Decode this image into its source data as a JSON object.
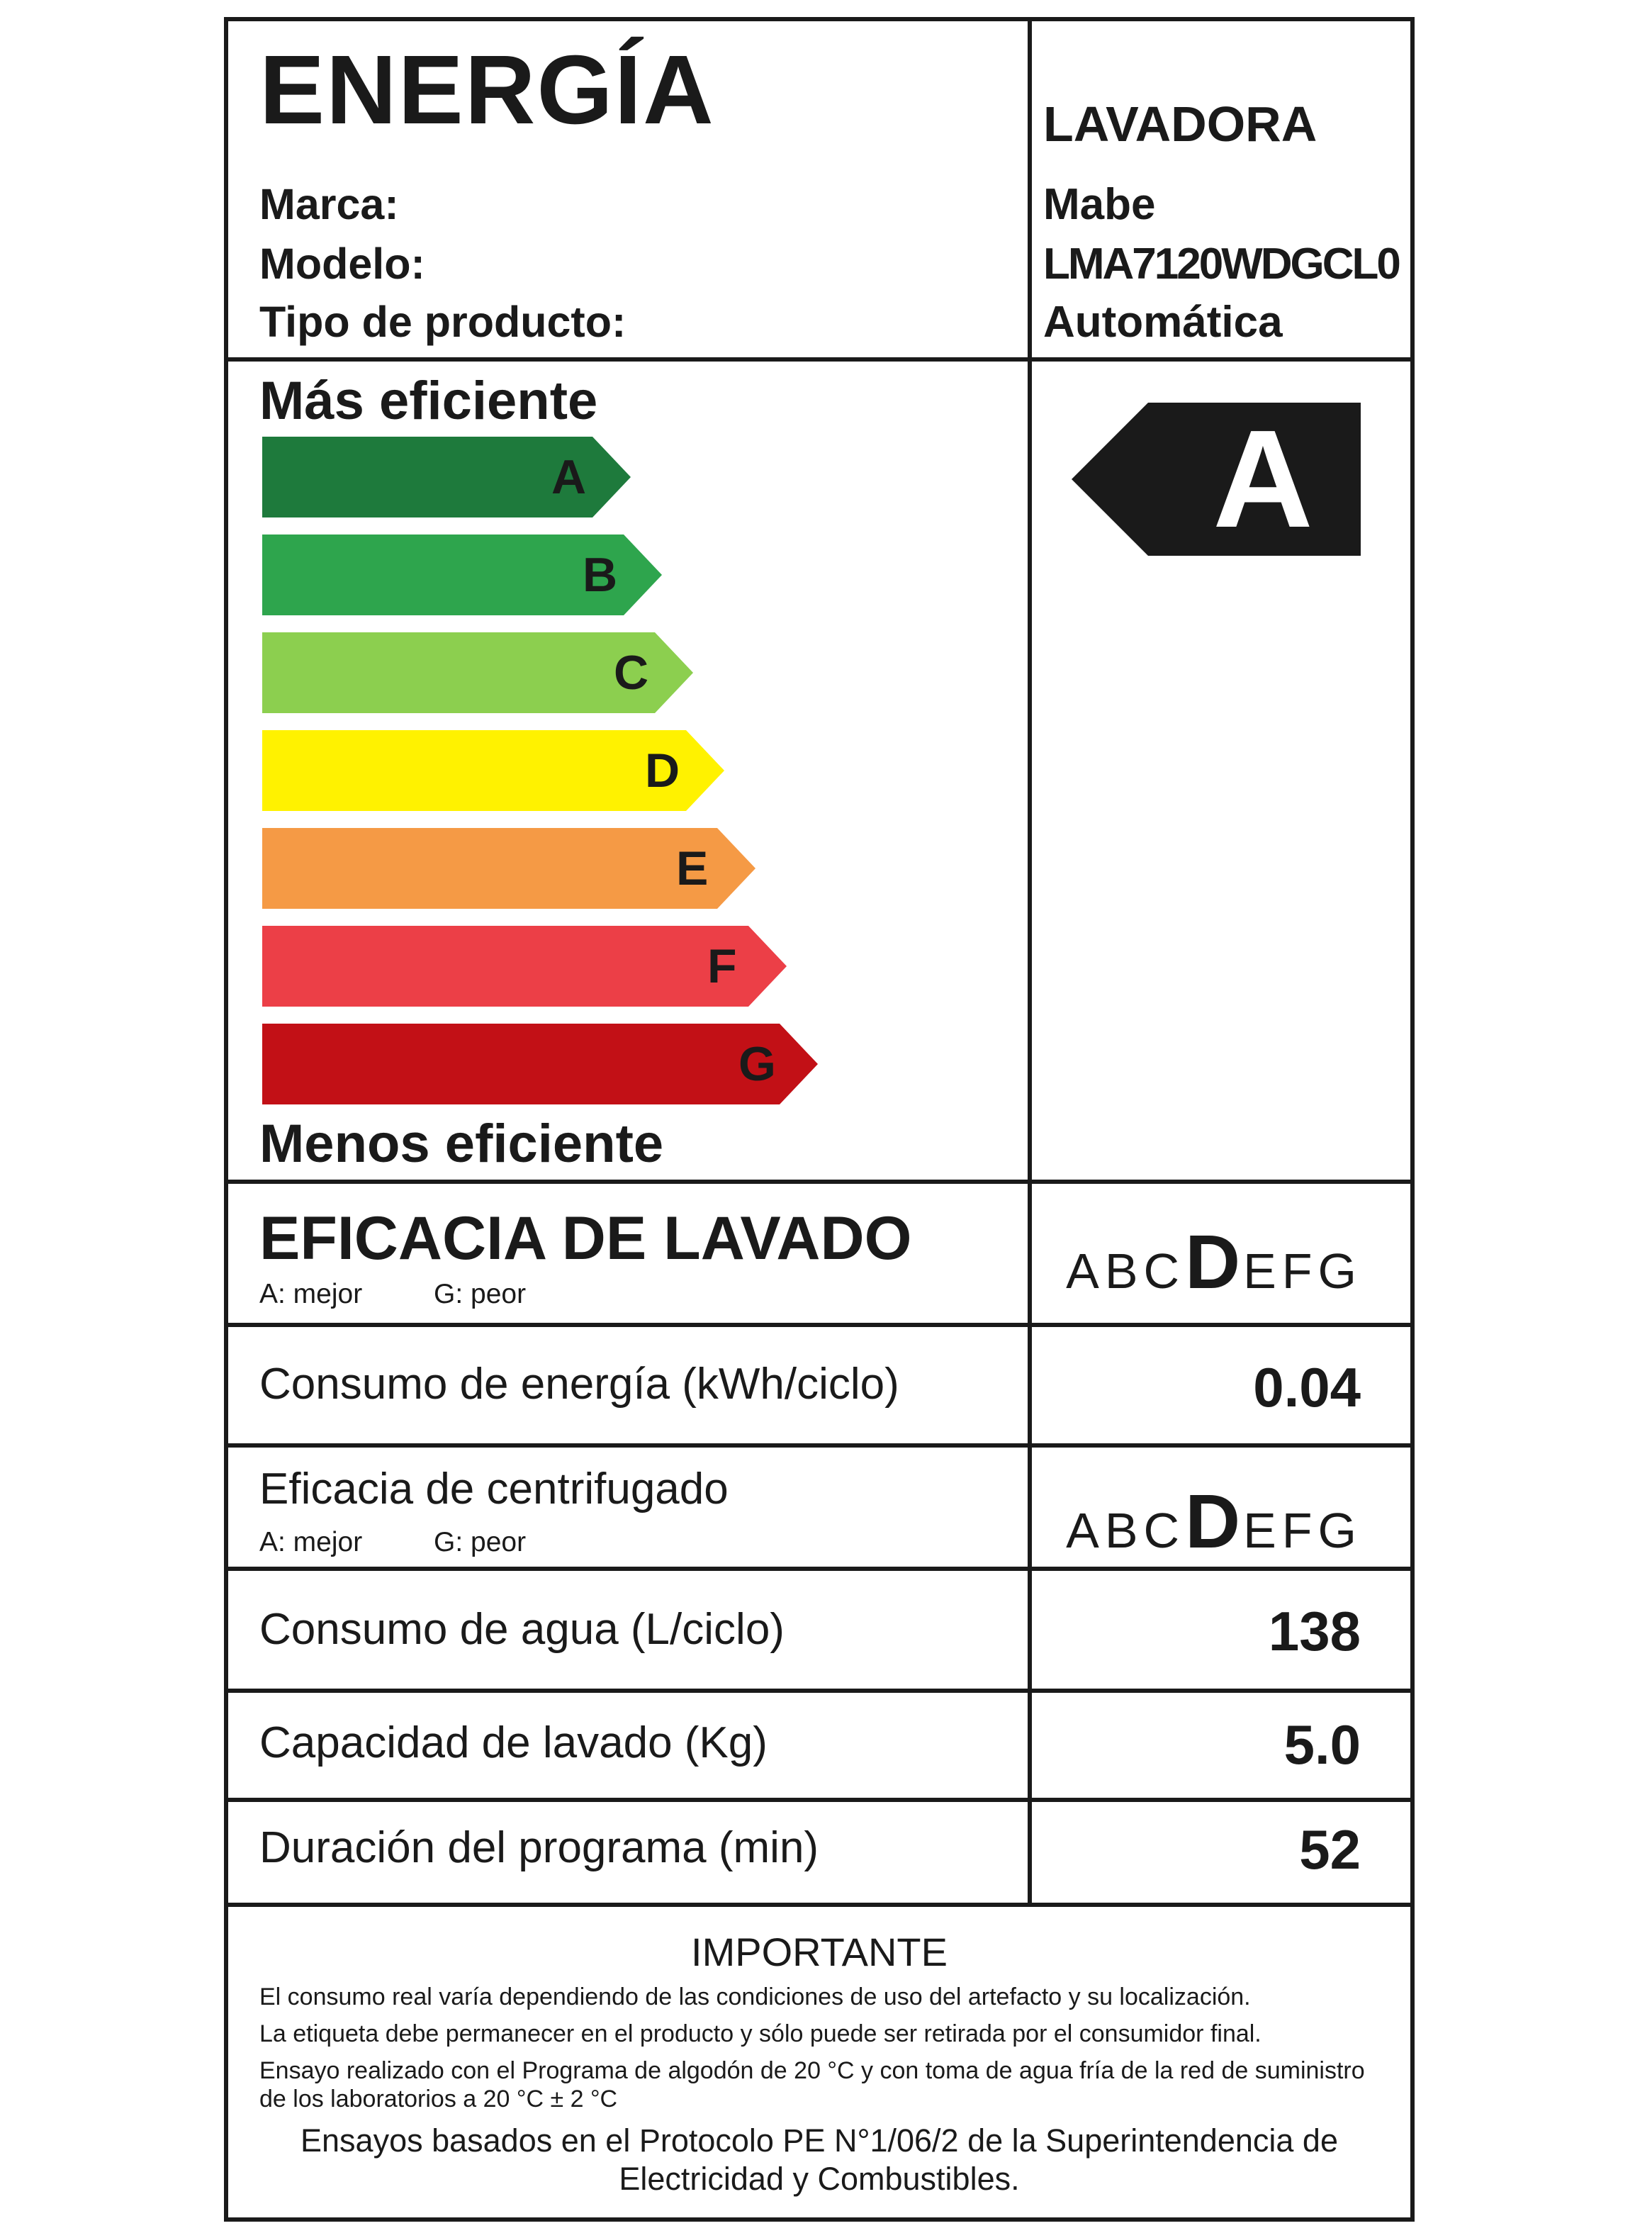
{
  "header": {
    "title": "ENERGÍA",
    "appliance": "LAVADORA",
    "fields": [
      {
        "label": "Marca:",
        "value": "Mabe"
      },
      {
        "label": "Modelo:",
        "value": "LMA7120WDGCL0"
      },
      {
        "label": "Tipo de producto:",
        "value": "Automática"
      }
    ]
  },
  "scale": {
    "top_caption": "Más eficiente",
    "bottom_caption": "Menos eficiente",
    "classes": [
      {
        "letter": "A",
        "color": "#1e7a3c"
      },
      {
        "letter": "B",
        "color": "#2ea54d"
      },
      {
        "letter": "C",
        "color": "#8ccf4f"
      },
      {
        "letter": "D",
        "color": "#fff200"
      },
      {
        "letter": "E",
        "color": "#f59a45"
      },
      {
        "letter": "F",
        "color": "#ec3f47"
      },
      {
        "letter": "G",
        "color": "#c21016"
      }
    ],
    "rating": "A",
    "indicator_color": "#1a1a1a"
  },
  "wash_efficiency": {
    "title": "EFICACIA DE LAVADO",
    "best": "A: mejor",
    "worst": "G: peor",
    "letters": [
      "A",
      "B",
      "C",
      "D",
      "E",
      "F",
      "G"
    ],
    "selected": "D"
  },
  "energy": {
    "label": "Consumo de energía (kWh/ciclo)",
    "value": "0.04"
  },
  "spin_efficiency": {
    "label": "Eficacia de centrifugado",
    "best": "A: mejor",
    "worst": "G: peor",
    "letters": [
      "A",
      "B",
      "C",
      "D",
      "E",
      "F",
      "G"
    ],
    "selected": "D"
  },
  "water": {
    "label": "Consumo de agua (L/ciclo)",
    "value": "138"
  },
  "capacity": {
    "label": "Capacidad de lavado (Kg)",
    "value": "5.0"
  },
  "duration": {
    "label": "Duración del programa (min)",
    "value": "52"
  },
  "important": {
    "title": "IMPORTANTE",
    "lines": [
      "El consumo real varía dependiendo de las condiciones de uso del artefacto y su localización.",
      "La etiqueta debe permanecer en el producto y sólo puede ser retirada por el consumidor final.",
      "Ensayo realizado con el Programa de algodón de 20 °C y con toma de agua fría de la red de suministro",
      "de los laboratorios a 20 °C ± 2 °C"
    ],
    "footer_lines": [
      "Ensayos basados en el Protocolo PE N°1/06/2 de la Superintendencia de",
      "Electricidad y Combustibles."
    ]
  }
}
